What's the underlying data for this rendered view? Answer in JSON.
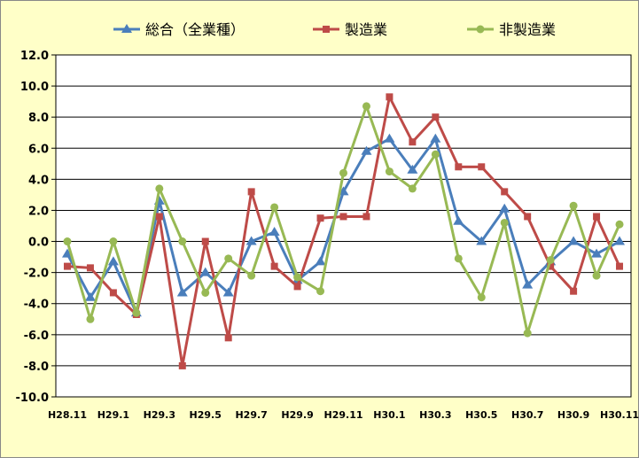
{
  "chart_data": {
    "type": "line",
    "title": "",
    "xlabel": "",
    "ylabel": "",
    "ylim": [
      -10,
      12
    ],
    "yticks": [
      "12.0",
      "10.0",
      "8.0",
      "6.0",
      "4.0",
      "2.0",
      "0.0",
      "-2.0",
      "-4.0",
      "-6.0",
      "-8.0",
      "-10.0"
    ],
    "ytick_values": [
      12,
      10,
      8,
      6,
      4,
      2,
      0,
      -2,
      -4,
      -6,
      -8,
      -10
    ],
    "grid": true,
    "legend_position": "top",
    "categories": [
      "H28.11",
      "H28.12",
      "H29.1",
      "H29.2",
      "H29.3",
      "H29.4",
      "H29.5",
      "H29.6",
      "H29.7",
      "H29.8",
      "H29.9",
      "H29.10",
      "H29.11",
      "H29.12",
      "H30.1",
      "H30.2",
      "H30.3",
      "H30.4",
      "H30.5",
      "H30.6",
      "H30.7",
      "H30.8",
      "H30.9",
      "H30.10",
      "H30.11"
    ],
    "x_tick_labels": [
      "H28.11",
      "H29.1",
      "H29.3",
      "H29.5",
      "H29.7",
      "H29.9",
      "H29.11",
      "H30.1",
      "H30.3",
      "H30.5",
      "H30.7",
      "H30.9",
      "H30.11"
    ],
    "series": [
      {
        "name": "総合（全業種）",
        "color": "#4a7ebb",
        "marker": "triangle",
        "values": [
          -0.8,
          -3.6,
          -1.3,
          -4.6,
          2.6,
          -3.3,
          -2.0,
          -3.3,
          0.0,
          0.6,
          -2.5,
          -1.3,
          3.2,
          5.8,
          6.6,
          4.6,
          6.6,
          1.3,
          0.0,
          2.1,
          -2.8,
          -1.3,
          0.0,
          -0.8,
          0.0
        ]
      },
      {
        "name": "製造業",
        "color": "#be4b48",
        "marker": "square",
        "values": [
          -1.6,
          -1.7,
          -3.3,
          -4.7,
          1.6,
          -8.0,
          0.0,
          -6.2,
          3.2,
          -1.6,
          -2.9,
          1.5,
          1.6,
          1.6,
          9.3,
          6.4,
          8.0,
          4.8,
          4.8,
          3.2,
          1.6,
          -1.6,
          -3.2,
          1.6,
          -1.6
        ]
      },
      {
        "name": "非製造業",
        "color": "#98b954",
        "marker": "circle",
        "values": [
          0.0,
          -5.0,
          0.0,
          -4.6,
          3.4,
          0.0,
          -3.3,
          -1.1,
          -2.2,
          2.2,
          -2.3,
          -3.2,
          4.4,
          8.7,
          4.5,
          3.4,
          5.6,
          -1.1,
          -3.6,
          1.2,
          -5.9,
          -1.2,
          2.3,
          -2.2,
          1.1
        ]
      }
    ]
  }
}
